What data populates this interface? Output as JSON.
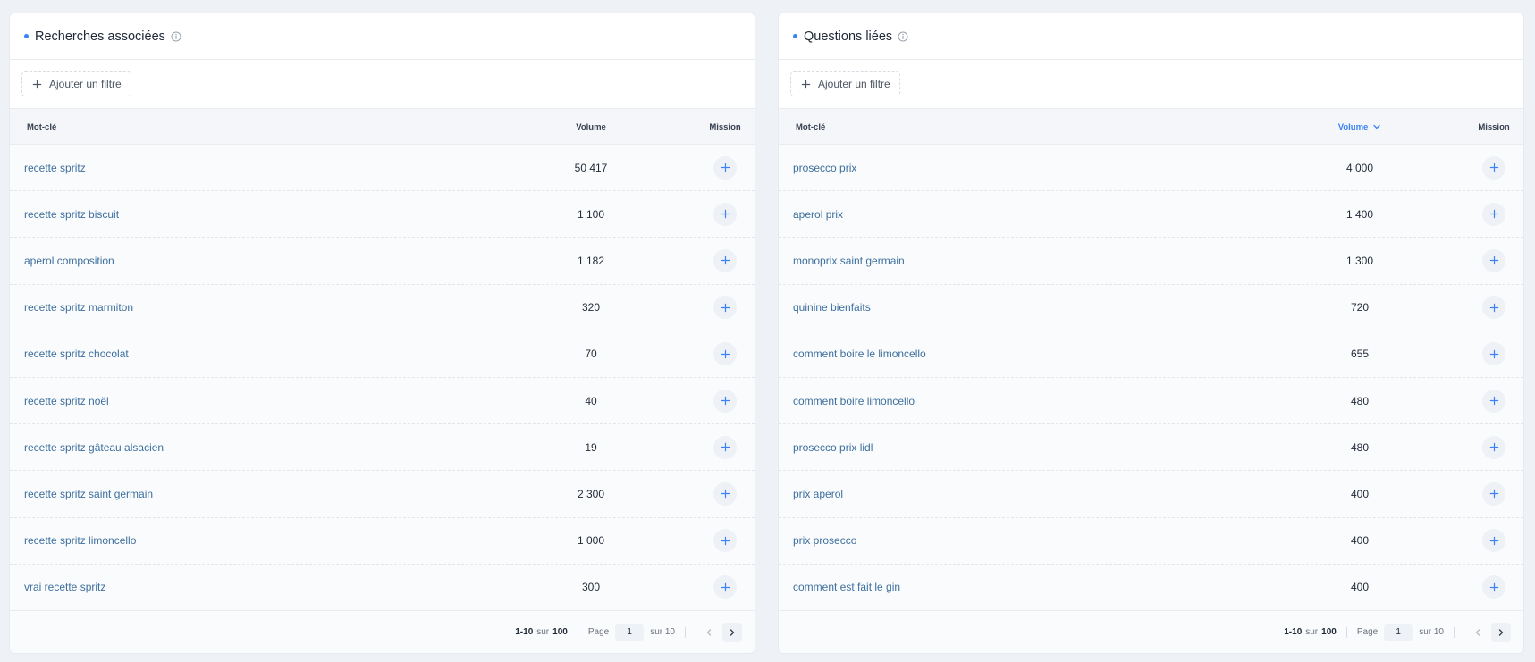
{
  "colors": {
    "accent": "#3b82f6",
    "link": "#3d6f9e",
    "background": "#eef1f6"
  },
  "panels": [
    {
      "title": "Recherches associées",
      "filter_label": "Ajouter un filtre",
      "columns": {
        "keyword": "Mot-clé",
        "volume": "Volume",
        "mission": "Mission"
      },
      "sorted_column": null,
      "rows": [
        {
          "keyword": "recette spritz",
          "volume": "50 417"
        },
        {
          "keyword": "recette spritz biscuit",
          "volume": "1 100"
        },
        {
          "keyword": "aperol composition",
          "volume": "1 182"
        },
        {
          "keyword": "recette spritz marmiton",
          "volume": "320"
        },
        {
          "keyword": "recette spritz chocolat",
          "volume": "70"
        },
        {
          "keyword": "recette spritz noël",
          "volume": "40"
        },
        {
          "keyword": "recette spritz gâteau alsacien",
          "volume": "19"
        },
        {
          "keyword": "recette spritz saint germain",
          "volume": "2 300"
        },
        {
          "keyword": "recette spritz limoncello",
          "volume": "1 000"
        },
        {
          "keyword": "vrai recette spritz",
          "volume": "300"
        }
      ],
      "pagination": {
        "range": "1-10",
        "of_label": "sur",
        "total": "100",
        "page_label": "Page",
        "current_page": "1",
        "pages_label": "sur 10"
      }
    },
    {
      "title": "Questions liées",
      "filter_label": "Ajouter un filtre",
      "columns": {
        "keyword": "Mot-clé",
        "volume": "Volume",
        "mission": "Mission"
      },
      "sorted_column": "volume",
      "rows": [
        {
          "keyword": "prosecco prix",
          "volume": "4 000"
        },
        {
          "keyword": "aperol prix",
          "volume": "1 400"
        },
        {
          "keyword": "monoprix saint germain",
          "volume": "1 300"
        },
        {
          "keyword": "quinine bienfaits",
          "volume": "720"
        },
        {
          "keyword": "comment boire le limoncello",
          "volume": "655"
        },
        {
          "keyword": "comment boire limoncello",
          "volume": "480"
        },
        {
          "keyword": "prosecco prix lidl",
          "volume": "480"
        },
        {
          "keyword": "prix aperol",
          "volume": "400"
        },
        {
          "keyword": "prix prosecco",
          "volume": "400"
        },
        {
          "keyword": "comment est fait le gin",
          "volume": "400"
        }
      ],
      "pagination": {
        "range": "1-10",
        "of_label": "sur",
        "total": "100",
        "page_label": "Page",
        "current_page": "1",
        "pages_label": "sur 10"
      }
    }
  ]
}
